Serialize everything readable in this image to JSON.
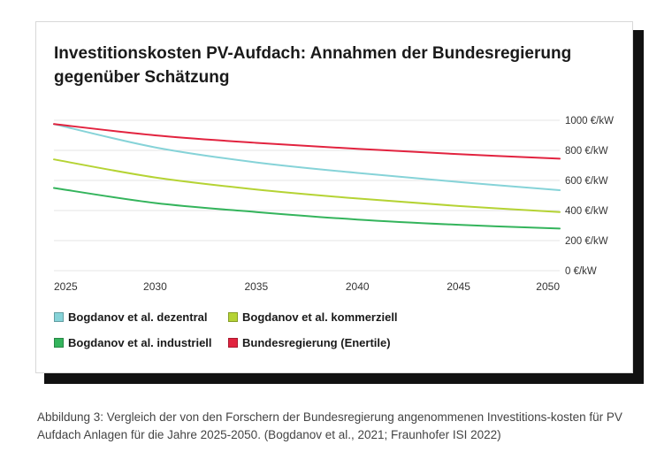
{
  "figure": {
    "caption": "Abbildung 3: Vergleich der von den Forschern der Bundesregierung  angenommenen Investitions-kosten für PV Aufdach Anlagen für die Jahre 2025-2050. (Bogdanov et al., 2021; Fraunhofer ISI 2022)"
  },
  "chart_data": {
    "type": "line",
    "title": "Investitionskosten PV-Aufdach: Annahmen der Bundesregierung gegenüber Schätzung",
    "xlabel": "",
    "ylabel": "",
    "x": [
      2025,
      2030,
      2035,
      2040,
      2045,
      2050
    ],
    "xlim": [
      2025,
      2050
    ],
    "ylim": [
      0,
      1000
    ],
    "y_ticks": [
      0,
      200,
      400,
      600,
      800,
      1000
    ],
    "y_tick_labels": [
      "0 €/kW",
      "200 €/kW",
      "400 €/kW",
      "600 €/kW",
      "800 €/kW",
      "1000 €/kW"
    ],
    "x_tick_labels": [
      "2025",
      "2030",
      "2035",
      "2040",
      "2045",
      "2050"
    ],
    "y_axis_position": "right",
    "grid": true,
    "legend_position": "bottom",
    "series": [
      {
        "name": "Bogdanov et al. dezentral",
        "color": "#86d3d8",
        "values": [
          975,
          820,
          720,
          650,
          590,
          535
        ]
      },
      {
        "name": "Bogdanov et al. kommerziell",
        "color": "#b5d334",
        "values": [
          740,
          620,
          540,
          480,
          430,
          390
        ]
      },
      {
        "name": "Bogdanov et al. industriell",
        "color": "#34b45c",
        "values": [
          550,
          450,
          390,
          340,
          305,
          280
        ]
      },
      {
        "name": "Bundesregierung (Enertile)",
        "color": "#e2233f",
        "values": [
          975,
          900,
          850,
          810,
          775,
          745
        ]
      }
    ]
  }
}
